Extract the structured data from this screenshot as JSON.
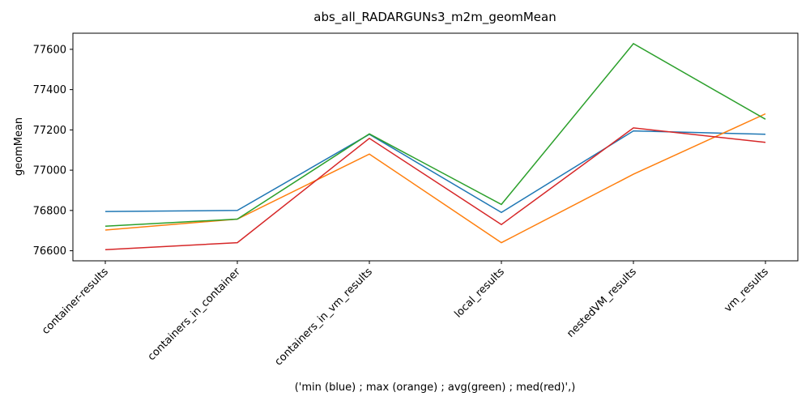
{
  "chart_data": {
    "type": "line",
    "title": "abs_all_RADARGUNs3_m2m_geomMean",
    "xlabel": "('min (blue) ; max (orange) ; avg(green) ; med(red)',)",
    "ylabel": "geomMean",
    "categories": [
      "container-results",
      "containers_in_container",
      "containers_in_vm_results",
      "local_results",
      "nestedVM_results",
      "vm_results"
    ],
    "ylim": [
      76550,
      77680
    ],
    "yticks": [
      76600,
      76800,
      77000,
      77200,
      77400,
      77600
    ],
    "grid": false,
    "series": [
      {
        "color": "#1f77b4",
        "values": [
          76795,
          76800,
          77178,
          76790,
          77195,
          77178
        ]
      },
      {
        "color": "#ff7f0e",
        "values": [
          76703,
          76757,
          77080,
          76640,
          76980,
          77280
        ]
      },
      {
        "color": "#2ca02c",
        "values": [
          76722,
          76757,
          77180,
          76830,
          77628,
          77253
        ]
      },
      {
        "color": "#d62728",
        "values": [
          76605,
          76640,
          77158,
          76730,
          77210,
          77138
        ]
      }
    ]
  }
}
